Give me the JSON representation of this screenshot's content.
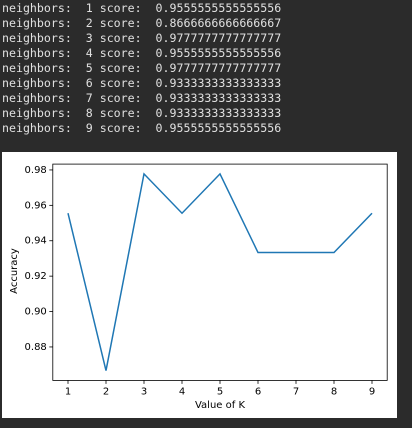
{
  "output_lines": [
    "neighbors:  1 score:  0.9555555555555556",
    "neighbors:  2 score:  0.8666666666666667",
    "neighbors:  3 score:  0.9777777777777777",
    "neighbors:  4 score:  0.9555555555555556",
    "neighbors:  5 score:  0.9777777777777777",
    "neighbors:  6 score:  0.9333333333333333",
    "neighbors:  7 score:  0.9333333333333333",
    "neighbors:  8 score:  0.9333333333333333",
    "neighbors:  9 score:  0.9555555555555556"
  ],
  "chart_data": {
    "type": "line",
    "x": [
      1,
      2,
      3,
      4,
      5,
      6,
      7,
      8,
      9
    ],
    "series": [
      {
        "color": "#1f77b4",
        "values": [
          0.9555555555555556,
          0.8666666666666667,
          0.9777777777777777,
          0.9555555555555556,
          0.9777777777777777,
          0.9333333333333333,
          0.9333333333333333,
          0.9333333333333333,
          0.9555555555555556
        ]
      }
    ],
    "xlabel": "Value of K",
    "ylabel": "Accuracy",
    "xlim": [
      0.6,
      9.4
    ],
    "xticks": [
      1,
      2,
      3,
      4,
      5,
      6,
      7,
      8,
      9
    ],
    "ylim": [
      0.8611,
      0.9833
    ],
    "yticks": [
      0.88,
      {
        "value": 0.9,
        "label": "0.90"
      },
      0.92,
      0.94,
      0.96,
      0.98
    ],
    "grid": false
  }
}
